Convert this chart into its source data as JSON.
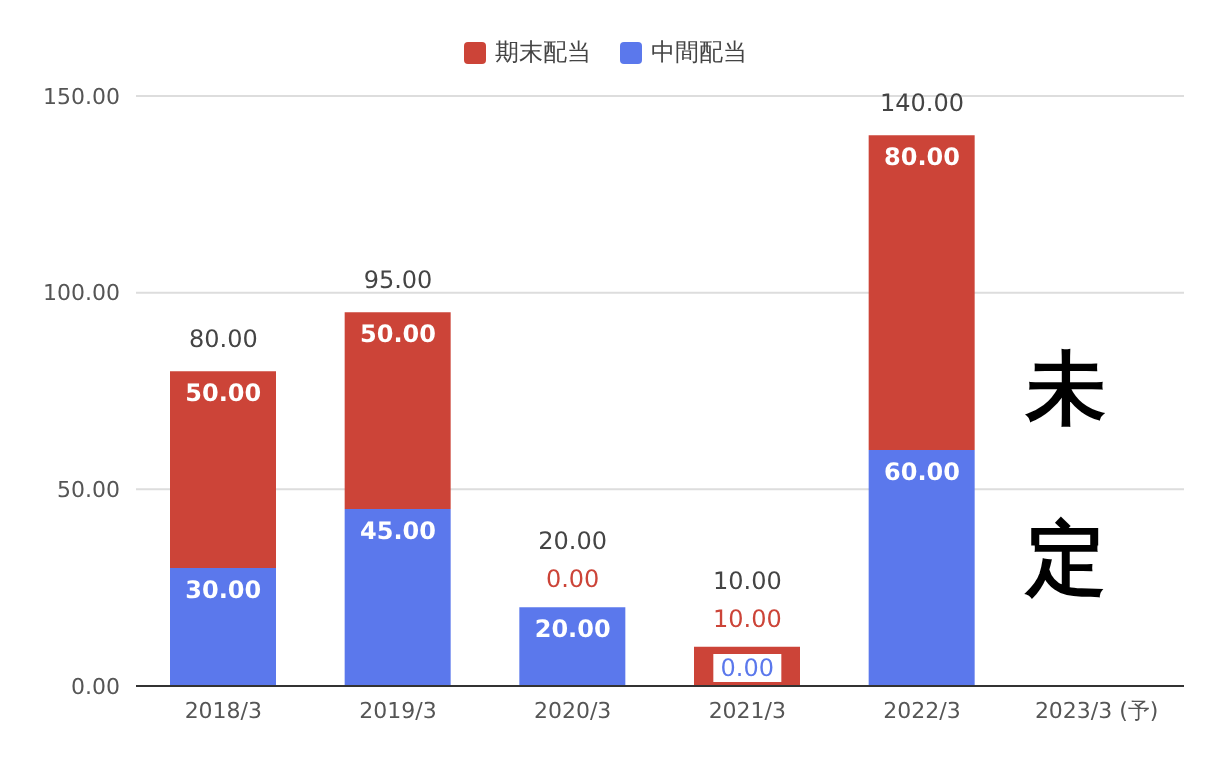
{
  "chart_data": {
    "type": "bar",
    "stacked": true,
    "categories": [
      "2018/3",
      "2019/3",
      "2020/3",
      "2021/3",
      "2022/3",
      "2023/3 (予)"
    ],
    "series": [
      {
        "name": "中間配当",
        "color": "#5b78ec",
        "values": [
          30,
          45,
          20,
          0,
          60,
          null
        ],
        "value_labels": [
          "30.00",
          "45.00",
          "20.00",
          "0.00",
          "60.00",
          null
        ]
      },
      {
        "name": "期末配当",
        "color": "#cc4438",
        "values": [
          50,
          50,
          0,
          10,
          80,
          null
        ],
        "value_labels": [
          "50.00",
          "50.00",
          "0.00",
          "10.00",
          "80.00",
          null
        ]
      }
    ],
    "totals": [
      "80.00",
      "95.00",
      "20.00",
      "10.00",
      "140.00",
      null
    ],
    "ylim": [
      0,
      150
    ],
    "yticks": [
      {
        "value": 0,
        "label": "0.00"
      },
      {
        "value": 50,
        "label": "50.00"
      },
      {
        "value": 100,
        "label": "100.00"
      },
      {
        "value": 150,
        "label": "150.00"
      }
    ],
    "grid": "y",
    "legend": "top",
    "annotations": [
      "未定"
    ]
  }
}
